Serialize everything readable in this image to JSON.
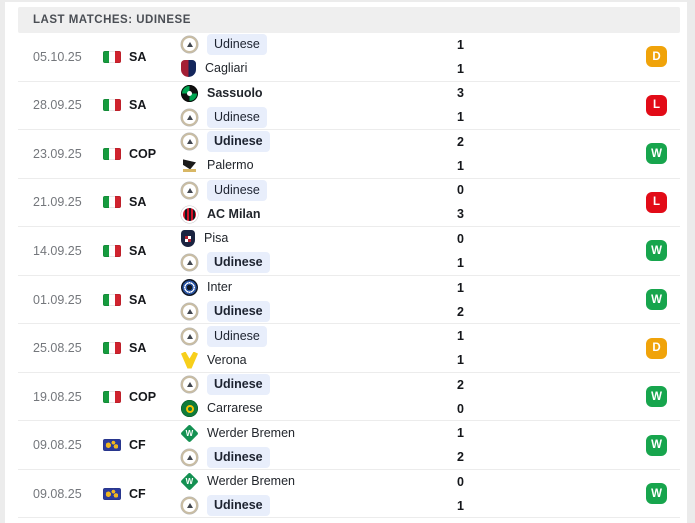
{
  "header": {
    "title": "LAST MATCHES: UDINESE"
  },
  "colors": {
    "win": "#17a54d",
    "loss": "#e20b17",
    "draw": "#f0a30a",
    "highlight_pill": "#e8eefb",
    "header_bg": "#efefef"
  },
  "icons": {
    "italy_flag": "italy-flag-icon",
    "world_flag": "world-flag-icon"
  },
  "matches": [
    {
      "date": "05.10.25",
      "competition": "SA",
      "flag": "italy",
      "home": {
        "name": "Udinese",
        "logo": "udinese",
        "score": "1",
        "bold": false,
        "highlight": true
      },
      "away": {
        "name": "Cagliari",
        "logo": "cagliari",
        "score": "1",
        "bold": false,
        "highlight": false
      },
      "result": "D"
    },
    {
      "date": "28.09.25",
      "competition": "SA",
      "flag": "italy",
      "home": {
        "name": "Sassuolo",
        "logo": "sassuolo",
        "score": "3",
        "bold": true,
        "highlight": false
      },
      "away": {
        "name": "Udinese",
        "logo": "udinese",
        "score": "1",
        "bold": false,
        "highlight": true
      },
      "result": "L"
    },
    {
      "date": "23.09.25",
      "competition": "COP",
      "flag": "italy",
      "home": {
        "name": "Udinese",
        "logo": "udinese",
        "score": "2",
        "bold": true,
        "highlight": true
      },
      "away": {
        "name": "Palermo",
        "logo": "palermo",
        "score": "1",
        "bold": false,
        "highlight": false
      },
      "result": "W"
    },
    {
      "date": "21.09.25",
      "competition": "SA",
      "flag": "italy",
      "home": {
        "name": "Udinese",
        "logo": "udinese",
        "score": "0",
        "bold": false,
        "highlight": true
      },
      "away": {
        "name": "AC Milan",
        "logo": "acmilan",
        "score": "3",
        "bold": true,
        "highlight": false
      },
      "result": "L"
    },
    {
      "date": "14.09.25",
      "competition": "SA",
      "flag": "italy",
      "home": {
        "name": "Pisa",
        "logo": "pisa",
        "score": "0",
        "bold": false,
        "highlight": false
      },
      "away": {
        "name": "Udinese",
        "logo": "udinese",
        "score": "1",
        "bold": true,
        "highlight": true
      },
      "result": "W"
    },
    {
      "date": "01.09.25",
      "competition": "SA",
      "flag": "italy",
      "home": {
        "name": "Inter",
        "logo": "inter",
        "score": "1",
        "bold": false,
        "highlight": false
      },
      "away": {
        "name": "Udinese",
        "logo": "udinese",
        "score": "2",
        "bold": true,
        "highlight": true
      },
      "result": "W"
    },
    {
      "date": "25.08.25",
      "competition": "SA",
      "flag": "italy",
      "home": {
        "name": "Udinese",
        "logo": "udinese",
        "score": "1",
        "bold": false,
        "highlight": true
      },
      "away": {
        "name": "Verona",
        "logo": "verona",
        "score": "1",
        "bold": false,
        "highlight": false
      },
      "result": "D"
    },
    {
      "date": "19.08.25",
      "competition": "COP",
      "flag": "italy",
      "home": {
        "name": "Udinese",
        "logo": "udinese",
        "score": "2",
        "bold": true,
        "highlight": true
      },
      "away": {
        "name": "Carrarese",
        "logo": "carrarese",
        "score": "0",
        "bold": false,
        "highlight": false
      },
      "result": "W"
    },
    {
      "date": "09.08.25",
      "competition": "CF",
      "flag": "world",
      "home": {
        "name": "Werder Bremen",
        "logo": "werder",
        "score": "1",
        "bold": false,
        "highlight": false
      },
      "away": {
        "name": "Udinese",
        "logo": "udinese",
        "score": "2",
        "bold": true,
        "highlight": true
      },
      "result": "W"
    },
    {
      "date": "09.08.25",
      "competition": "CF",
      "flag": "world",
      "home": {
        "name": "Werder Bremen",
        "logo": "werder",
        "score": "0",
        "bold": false,
        "highlight": false
      },
      "away": {
        "name": "Udinese",
        "logo": "udinese",
        "score": "1",
        "bold": true,
        "highlight": true
      },
      "result": "W"
    }
  ]
}
